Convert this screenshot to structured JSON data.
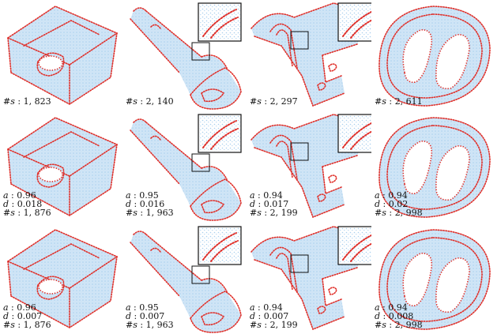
{
  "colors": {
    "point_fill": "#a9cfee",
    "edge_points": "#e0302a",
    "inset_border": "#111111",
    "background": "#ffffff"
  },
  "rows": [
    {
      "cells": [
        {
          "shape": "block-with-hole",
          "inset": false,
          "lines": [
            {
              "key": "#s",
              "val": "1, 823"
            }
          ]
        },
        {
          "shape": "cylinder-shaft",
          "inset": true,
          "lines": [
            {
              "key": "#s",
              "val": "2, 140"
            }
          ]
        },
        {
          "shape": "bracket-clamp",
          "inset": true,
          "lines": [
            {
              "key": "#s",
              "val": "2, 297"
            }
          ]
        },
        {
          "shape": "ring-plate",
          "inset": false,
          "lines": [
            {
              "key": "#s",
              "val": "2, 611"
            }
          ]
        }
      ]
    },
    {
      "cells": [
        {
          "shape": "block-with-hole",
          "inset": false,
          "lines": [
            {
              "key": "a",
              "val": "0.96"
            },
            {
              "key": "d",
              "val": "0.018"
            },
            {
              "key": "#s",
              "val": "1, 876"
            }
          ]
        },
        {
          "shape": "cylinder-shaft",
          "inset": true,
          "lines": [
            {
              "key": "a",
              "val": "0.95"
            },
            {
              "key": "d",
              "val": "0.016"
            },
            {
              "key": "#s",
              "val": "1, 963"
            }
          ]
        },
        {
          "shape": "bracket-clamp",
          "inset": true,
          "lines": [
            {
              "key": "a",
              "val": "0.94"
            },
            {
              "key": "d",
              "val": "0.017"
            },
            {
              "key": "#s",
              "val": "2, 199"
            }
          ]
        },
        {
          "shape": "ring-plate",
          "inset": false,
          "lines": [
            {
              "key": "a",
              "val": "0.94"
            },
            {
              "key": "d",
              "val": "0.02"
            },
            {
              "key": "#s",
              "val": "2, 998"
            }
          ]
        }
      ]
    },
    {
      "cells": [
        {
          "shape": "block-with-hole",
          "inset": false,
          "lines": [
            {
              "key": "a",
              "val": "0.96"
            },
            {
              "key": "d",
              "val": "0.007"
            },
            {
              "key": "#s",
              "val": "1, 876"
            }
          ]
        },
        {
          "shape": "cylinder-shaft",
          "inset": true,
          "lines": [
            {
              "key": "a",
              "val": "0.95"
            },
            {
              "key": "d",
              "val": "0.007"
            },
            {
              "key": "#s",
              "val": "1, 963"
            }
          ]
        },
        {
          "shape": "bracket-clamp",
          "inset": true,
          "lines": [
            {
              "key": "a",
              "val": "0.94"
            },
            {
              "key": "d",
              "val": "0.007"
            },
            {
              "key": "#s",
              "val": "2, 199"
            }
          ]
        },
        {
          "shape": "ring-plate",
          "inset": false,
          "lines": [
            {
              "key": "a",
              "val": "0.94"
            },
            {
              "key": "d",
              "val": "0.008"
            },
            {
              "key": "#s",
              "val": "2, 998"
            }
          ]
        }
      ]
    }
  ]
}
